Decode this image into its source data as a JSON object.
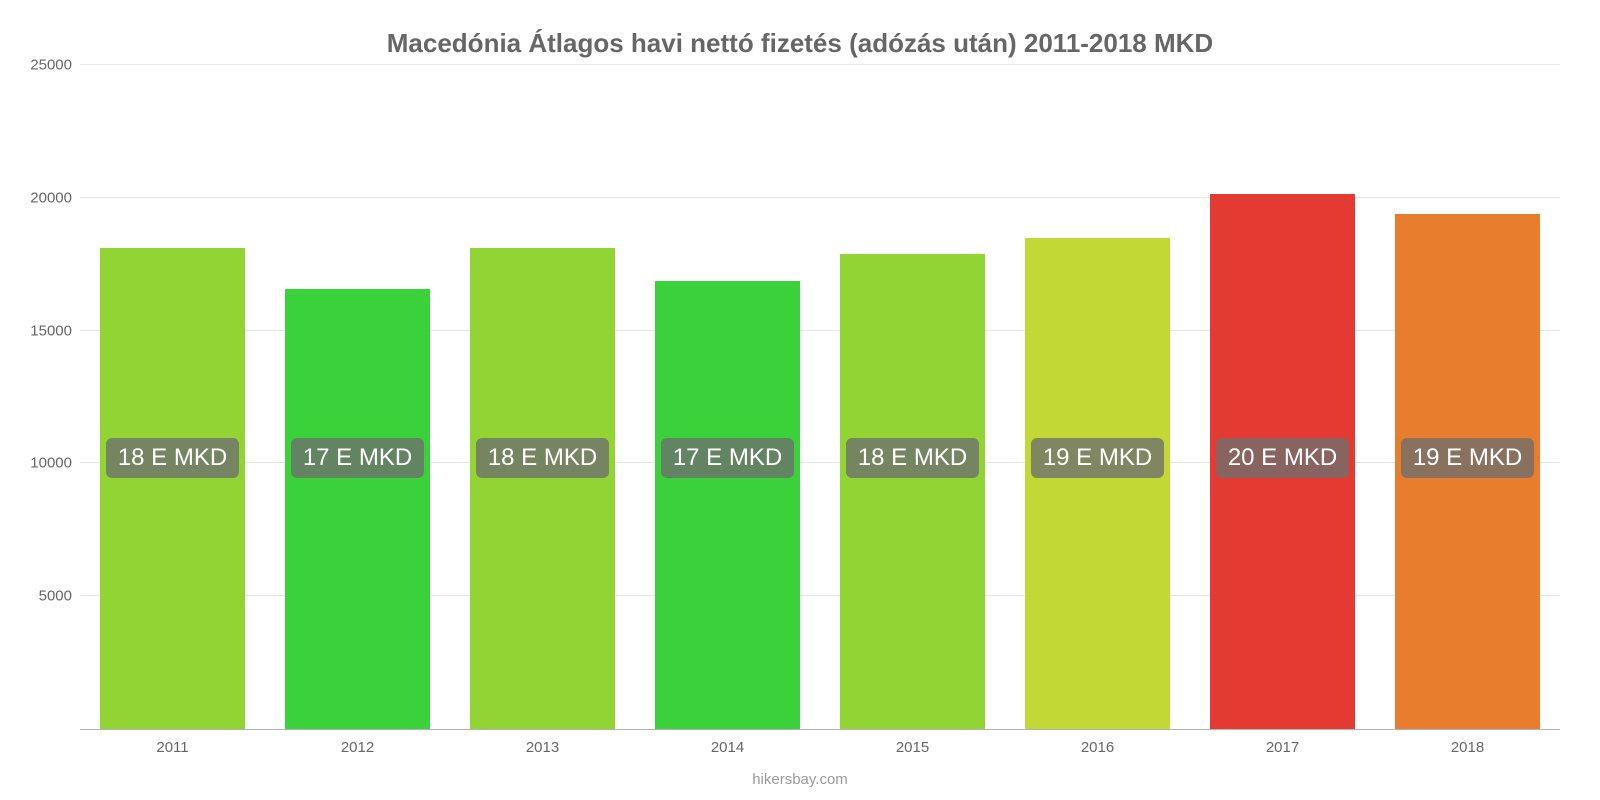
{
  "chart": {
    "type": "bar",
    "title": "Macedónia Átlagos havi nettó fizetés (adózás után) 2011-2018 MKD",
    "title_fontsize": 26,
    "title_color": "#666666",
    "source": "hikersbay.com",
    "background_color": "#ffffff",
    "grid_color": "#e6e6e6",
    "axis_color": "#b3b3b3",
    "tick_label_color": "#666666",
    "tick_fontsize": 15,
    "ylim": [
      0,
      25000
    ],
    "ytick_step": 5000,
    "yticks": [
      {
        "value": 0,
        "label": "0"
      },
      {
        "value": 5000,
        "label": "5000"
      },
      {
        "value": 10000,
        "label": "10000"
      },
      {
        "value": 15000,
        "label": "15000"
      },
      {
        "value": 20000,
        "label": "20000"
      },
      {
        "value": 25000,
        "label": "25000"
      }
    ],
    "bar_width_pct": 78,
    "data_label_bg": "rgba(110,110,110,0.78)",
    "data_label_color": "#ffffff",
    "data_label_fontsize": 24,
    "data_label_y_value": 10200,
    "series": [
      {
        "year": "2011",
        "value": 18100,
        "color": "#93d435",
        "label": "18 E MKD"
      },
      {
        "year": "2012",
        "value": 16550,
        "color": "#3bd13b",
        "label": "17 E MKD"
      },
      {
        "year": "2013",
        "value": 18100,
        "color": "#93d435",
        "label": "18 E MKD"
      },
      {
        "year": "2014",
        "value": 16850,
        "color": "#3bd13b",
        "label": "17 E MKD"
      },
      {
        "year": "2015",
        "value": 17900,
        "color": "#93d435",
        "label": "18 E MKD"
      },
      {
        "year": "2016",
        "value": 18500,
        "color": "#c1d835",
        "label": "19 E MKD"
      },
      {
        "year": "2017",
        "value": 20150,
        "color": "#e33b31",
        "label": "20 E MKD"
      },
      {
        "year": "2018",
        "value": 19400,
        "color": "#e87d2e",
        "label": "19 E MKD"
      }
    ]
  }
}
